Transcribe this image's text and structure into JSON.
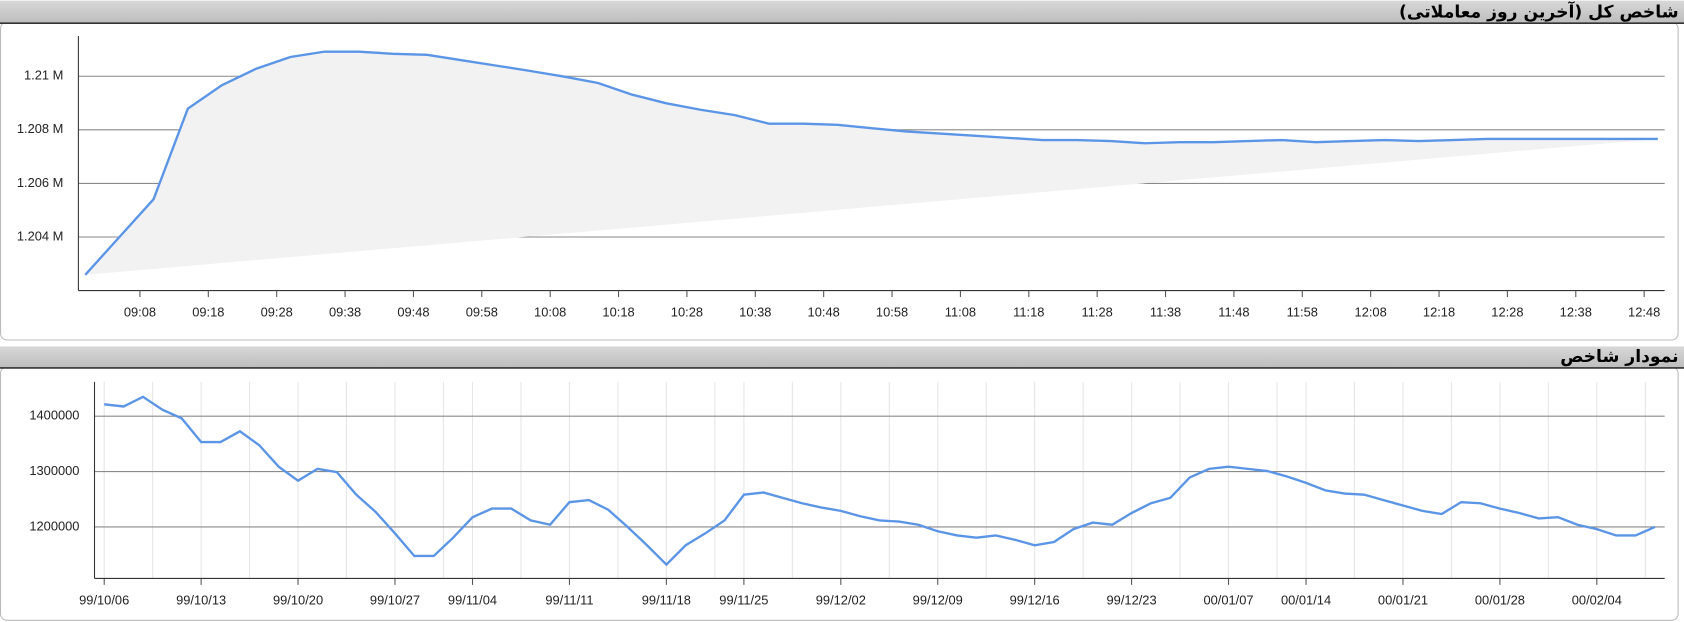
{
  "chart_data": [
    {
      "type": "area-line",
      "title": "شاخص کل (آخرین روز معاملاتی)",
      "color": "#5b95e6",
      "fill": "#f2f2f2",
      "x": [
        "09:00",
        "09:05",
        "09:10",
        "09:15",
        "09:20",
        "09:25",
        "09:30",
        "09:35",
        "09:40",
        "09:45",
        "09:50",
        "09:55",
        "10:00",
        "10:05",
        "10:10",
        "10:15",
        "10:20",
        "10:25",
        "10:30",
        "10:35",
        "10:40",
        "10:45",
        "10:50",
        "10:55",
        "11:00",
        "11:05",
        "11:10",
        "11:15",
        "11:20",
        "11:25",
        "11:30",
        "11:35",
        "11:40",
        "11:45",
        "11:50",
        "11:55",
        "12:00",
        "12:05",
        "12:10",
        "12:15",
        "12:20",
        "12:25",
        "12:30",
        "12:35",
        "12:40",
        "12:45",
        "12:50"
      ],
      "values": [
        1202590,
        1204000,
        1205410,
        1208790,
        1209670,
        1210280,
        1210720,
        1210920,
        1210920,
        1210840,
        1210800,
        1210600,
        1210400,
        1210200,
        1209990,
        1209750,
        1209310,
        1208990,
        1208750,
        1208550,
        1208230,
        1208230,
        1208190,
        1208060,
        1207940,
        1207860,
        1207780,
        1207700,
        1207620,
        1207620,
        1207580,
        1207500,
        1207540,
        1207540,
        1207580,
        1207620,
        1207540,
        1207580,
        1207620,
        1207580,
        1207620,
        1207660,
        1207660,
        1207660,
        1207660,
        1207660,
        1207660
      ],
      "xlim": [
        "08:59",
        "12:51"
      ],
      "xticks": [
        "09:08",
        "09:18",
        "09:28",
        "09:38",
        "09:48",
        "09:58",
        "10:08",
        "10:18",
        "10:28",
        "10:38",
        "10:48",
        "10:58",
        "11:08",
        "11:18",
        "11:28",
        "11:38",
        "11:48",
        "11:58",
        "12:08",
        "12:18",
        "12:28",
        "12:38",
        "12:48"
      ],
      "ylim": [
        1202000,
        1211500
      ],
      "yticks": [
        {
          "value": 1204000,
          "label": "1.204 M"
        },
        {
          "value": 1206000,
          "label": "1.206 M"
        },
        {
          "value": 1208000,
          "label": "1.208 M"
        },
        {
          "value": 1210000,
          "label": "1.21 M"
        }
      ],
      "grid": true
    },
    {
      "type": "line",
      "title": "نمودار شاخص",
      "color": "#5b95e6",
      "categories": [
        "99/10/06",
        null,
        null,
        null,
        null,
        "99/10/13",
        null,
        null,
        null,
        null,
        "99/10/20",
        null,
        null,
        null,
        null,
        "99/10/27",
        null,
        null,
        null,
        "99/11/04",
        null,
        null,
        null,
        null,
        "99/11/11",
        null,
        null,
        null,
        null,
        "99/11/18",
        null,
        null,
        null,
        "99/11/25",
        null,
        null,
        null,
        null,
        "99/12/02",
        null,
        null,
        null,
        null,
        "99/12/09",
        null,
        null,
        null,
        null,
        "99/12/16",
        null,
        null,
        null,
        null,
        "99/12/23",
        null,
        null,
        null,
        null,
        "00/01/07",
        null,
        null,
        null,
        "00/01/14",
        null,
        null,
        null,
        null,
        "00/01/21",
        null,
        null,
        null,
        null,
        "00/01/28",
        null,
        null,
        null,
        null,
        "00/02/04",
        null,
        null,
        null
      ],
      "values": [
        1421400,
        1417500,
        1435000,
        1411700,
        1396100,
        1353400,
        1353400,
        1372800,
        1347600,
        1308700,
        1283500,
        1304900,
        1299000,
        1258300,
        1227200,
        1188300,
        1147600,
        1147600,
        1180600,
        1217500,
        1233000,
        1233000,
        1211700,
        1203900,
        1244700,
        1248500,
        1231100,
        1200000,
        1167000,
        1132000,
        1167000,
        1188300,
        1211700,
        1258300,
        1262100,
        1252400,
        1242700,
        1235000,
        1229100,
        1219400,
        1211700,
        1209700,
        1203900,
        1192200,
        1184500,
        1180600,
        1184500,
        1176700,
        1167000,
        1172800,
        1196100,
        1207800,
        1203900,
        1225200,
        1242700,
        1252400,
        1289300,
        1304900,
        1308700,
        1304900,
        1301000,
        1291300,
        1279600,
        1266000,
        1260200,
        1258300,
        1248500,
        1238800,
        1229100,
        1223300,
        1244700,
        1242700,
        1233000,
        1225200,
        1215500,
        1217500,
        1203900,
        1196100,
        1184500,
        1184500,
        1200000
      ],
      "ylim": [
        1107000,
        1462000
      ],
      "yticks": [
        1200000,
        1300000,
        1400000
      ],
      "grid": true
    }
  ]
}
